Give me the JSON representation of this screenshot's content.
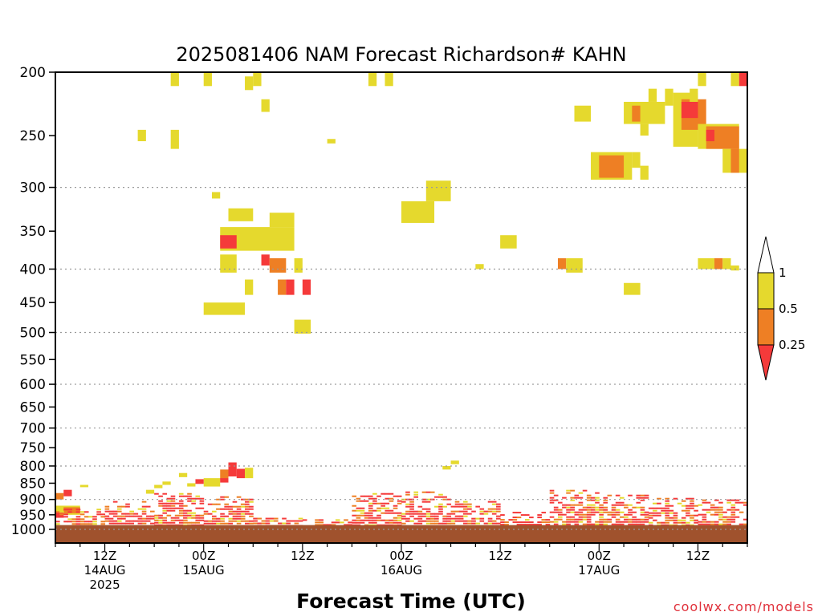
{
  "chart_data": {
    "type": "heatmap",
    "title": "2025081406 NAM Forecast Richardson# KAHN",
    "xlabel": "Forecast Time (UTC)",
    "credit": "coolwx.com/models",
    "x_unit": "hours after 2025-08-14 06Z",
    "xlim": [
      0,
      84
    ],
    "y_axis": {
      "scale": "log",
      "reversed": true,
      "range": [
        1000,
        200
      ]
    },
    "y_ticks": [
      200,
      250,
      300,
      350,
      400,
      450,
      500,
      550,
      600,
      650,
      700,
      750,
      800,
      850,
      900,
      950,
      1000
    ],
    "y_tick_labels": [
      "200",
      "250",
      "300",
      "350",
      "400",
      "450",
      "500",
      "550",
      "600",
      "650",
      "700",
      "750",
      "800",
      "850",
      "900",
      "950",
      "1000"
    ],
    "y_gridlines": [
      300,
      400,
      500,
      600,
      700,
      800,
      900,
      1000
    ],
    "x_ticks": [
      {
        "x": 6,
        "line1": "12Z",
        "line2": "14AUG",
        "line3": "2025"
      },
      {
        "x": 18,
        "line1": "00Z",
        "line2": "15AUG",
        "line3": ""
      },
      {
        "x": 30,
        "line1": "12Z",
        "line2": "",
        "line3": ""
      },
      {
        "x": 42,
        "line1": "00Z",
        "line2": "16AUG",
        "line3": ""
      },
      {
        "x": 54,
        "line1": "12Z",
        "line2": "",
        "line3": ""
      },
      {
        "x": 66,
        "line1": "00Z",
        "line2": "17AUG",
        "line3": ""
      },
      {
        "x": 78,
        "line1": "12Z",
        "line2": "",
        "line3": ""
      }
    ],
    "colorbar": {
      "labels": [
        "1",
        "0.5",
        "0.25"
      ],
      "bins": [
        {
          "range": "> 1",
          "color": "#ffffff"
        },
        {
          "range": "0.5 - 1",
          "color": "#e5d92d"
        },
        {
          "range": "0.25 - 0.5",
          "color": "#ee7f24"
        },
        {
          "range": "< 0.25",
          "color": "#f53a3a"
        }
      ]
    },
    "ground": {
      "color": "#a0522d",
      "from_p": 985
    },
    "cells": [
      {
        "x0": 14,
        "x1": 15,
        "p0": 200,
        "p1": 210,
        "c": "y"
      },
      {
        "x0": 18,
        "x1": 19,
        "p0": 200,
        "p1": 210,
        "c": "y"
      },
      {
        "x0": 23,
        "x1": 24,
        "p0": 203,
        "p1": 213,
        "c": "y"
      },
      {
        "x0": 24,
        "x1": 25,
        "p0": 200,
        "p1": 210,
        "c": "y"
      },
      {
        "x0": 25,
        "x1": 26,
        "p0": 220,
        "p1": 230,
        "c": "y"
      },
      {
        "x0": 10,
        "x1": 11,
        "p0": 245,
        "p1": 255,
        "c": "y"
      },
      {
        "x0": 14,
        "x1": 15,
        "p0": 245,
        "p1": 262,
        "c": "y"
      },
      {
        "x0": 33,
        "x1": 34,
        "p0": 253,
        "p1": 257,
        "c": "y"
      },
      {
        "x0": 38,
        "x1": 39,
        "p0": 200,
        "p1": 210,
        "c": "y"
      },
      {
        "x0": 40,
        "x1": 41,
        "p0": 200,
        "p1": 210,
        "c": "y"
      },
      {
        "x0": 19,
        "x1": 20,
        "p0": 305,
        "p1": 312,
        "c": "y"
      },
      {
        "x0": 21,
        "x1": 24,
        "p0": 323,
        "p1": 338,
        "c": "y"
      },
      {
        "x0": 26,
        "x1": 29,
        "p0": 328,
        "p1": 345,
        "c": "y"
      },
      {
        "x0": 20,
        "x1": 29,
        "p0": 345,
        "p1": 375,
        "c": "y"
      },
      {
        "x0": 20,
        "x1": 22,
        "p0": 355,
        "p1": 372,
        "c": "r"
      },
      {
        "x0": 20,
        "x1": 22,
        "p0": 380,
        "p1": 405,
        "c": "y"
      },
      {
        "x0": 25,
        "x1": 26,
        "p0": 380,
        "p1": 395,
        "c": "r"
      },
      {
        "x0": 26,
        "x1": 28,
        "p0": 385,
        "p1": 405,
        "c": "o"
      },
      {
        "x0": 29,
        "x1": 30,
        "p0": 385,
        "p1": 405,
        "c": "y"
      },
      {
        "x0": 23,
        "x1": 24,
        "p0": 415,
        "p1": 438,
        "c": "y"
      },
      {
        "x0": 27,
        "x1": 28,
        "p0": 415,
        "p1": 438,
        "c": "o"
      },
      {
        "x0": 28,
        "x1": 29,
        "p0": 415,
        "p1": 438,
        "c": "r"
      },
      {
        "x0": 30,
        "x1": 31,
        "p0": 415,
        "p1": 438,
        "c": "r"
      },
      {
        "x0": 18,
        "x1": 23,
        "p0": 450,
        "p1": 470,
        "c": "y"
      },
      {
        "x0": 29,
        "x1": 31,
        "p0": 478,
        "p1": 502,
        "c": "y"
      },
      {
        "x0": 42,
        "x1": 46,
        "p0": 315,
        "p1": 340,
        "c": "y"
      },
      {
        "x0": 45,
        "x1": 48,
        "p0": 293,
        "p1": 315,
        "c": "y"
      },
      {
        "x0": 54,
        "x1": 56,
        "p0": 355,
        "p1": 372,
        "c": "y"
      },
      {
        "x0": 51,
        "x1": 52,
        "p0": 393,
        "p1": 400,
        "c": "y"
      },
      {
        "x0": 63,
        "x1": 65,
        "p0": 225,
        "p1": 238,
        "c": "y"
      },
      {
        "x0": 65,
        "x1": 70,
        "p0": 265,
        "p1": 292,
        "c": "y"
      },
      {
        "x0": 66,
        "x1": 69,
        "p0": 268,
        "p1": 290,
        "c": "o"
      },
      {
        "x0": 70,
        "x1": 71,
        "p0": 265,
        "p1": 280,
        "c": "y"
      },
      {
        "x0": 71,
        "x1": 72,
        "p0": 278,
        "p1": 292,
        "c": "y"
      },
      {
        "x0": 69,
        "x1": 74,
        "p0": 222,
        "p1": 240,
        "c": "y"
      },
      {
        "x0": 70,
        "x1": 71,
        "p0": 225,
        "p1": 238,
        "c": "o"
      },
      {
        "x0": 71,
        "x1": 72,
        "p0": 240,
        "p1": 250,
        "c": "y"
      },
      {
        "x0": 72,
        "x1": 73,
        "p0": 212,
        "p1": 222,
        "c": "y"
      },
      {
        "x0": 74,
        "x1": 75,
        "p0": 212,
        "p1": 225,
        "c": "y"
      },
      {
        "x0": 75,
        "x1": 78,
        "p0": 215,
        "p1": 260,
        "c": "y"
      },
      {
        "x0": 76,
        "x1": 79,
        "p0": 220,
        "p1": 245,
        "c": "o"
      },
      {
        "x0": 76,
        "x1": 78,
        "p0": 222,
        "p1": 235,
        "c": "r"
      },
      {
        "x0": 77,
        "x1": 78,
        "p0": 212,
        "p1": 222,
        "c": "y"
      },
      {
        "x0": 78,
        "x1": 79,
        "p0": 200,
        "p1": 210,
        "c": "y"
      },
      {
        "x0": 78,
        "x1": 83,
        "p0": 240,
        "p1": 262,
        "c": "y"
      },
      {
        "x0": 79,
        "x1": 83,
        "p0": 242,
        "p1": 262,
        "c": "o"
      },
      {
        "x0": 79,
        "x1": 80,
        "p0": 245,
        "p1": 255,
        "c": "r"
      },
      {
        "x0": 81,
        "x1": 84,
        "p0": 262,
        "p1": 285,
        "c": "y"
      },
      {
        "x0": 82,
        "x1": 83,
        "p0": 262,
        "p1": 285,
        "c": "o"
      },
      {
        "x0": 82,
        "x1": 83,
        "p0": 200,
        "p1": 210,
        "c": "y"
      },
      {
        "x0": 83,
        "x1": 84,
        "p0": 200,
        "p1": 210,
        "c": "r"
      },
      {
        "x0": 61,
        "x1": 62,
        "p0": 385,
        "p1": 400,
        "c": "o"
      },
      {
        "x0": 62,
        "x1": 64,
        "p0": 385,
        "p1": 405,
        "c": "y"
      },
      {
        "x0": 69,
        "x1": 71,
        "p0": 420,
        "p1": 438,
        "c": "y"
      },
      {
        "x0": 78,
        "x1": 80,
        "p0": 385,
        "p1": 400,
        "c": "y"
      },
      {
        "x0": 80,
        "x1": 81,
        "p0": 385,
        "p1": 400,
        "c": "o"
      },
      {
        "x0": 81,
        "x1": 82,
        "p0": 385,
        "p1": 400,
        "c": "y"
      },
      {
        "x0": 82,
        "x1": 83,
        "p0": 395,
        "p1": 402,
        "c": "y"
      },
      {
        "x0": 18,
        "x1": 20,
        "p0": 835,
        "p1": 860,
        "c": "y"
      },
      {
        "x0": 20,
        "x1": 21,
        "p0": 810,
        "p1": 840,
        "c": "o"
      },
      {
        "x0": 21,
        "x1": 22,
        "p0": 790,
        "p1": 830,
        "c": "r"
      },
      {
        "x0": 22,
        "x1": 23,
        "p0": 808,
        "p1": 835,
        "c": "r"
      },
      {
        "x0": 23,
        "x1": 24,
        "p0": 805,
        "p1": 835,
        "c": "y"
      },
      {
        "x0": 20,
        "x1": 21,
        "p0": 835,
        "p1": 848,
        "c": "r"
      },
      {
        "x0": 15,
        "x1": 16,
        "p0": 820,
        "p1": 832,
        "c": "y"
      },
      {
        "x0": 13,
        "x1": 14,
        "p0": 845,
        "p1": 855,
        "c": "y"
      },
      {
        "x0": 12,
        "x1": 13,
        "p0": 855,
        "p1": 865,
        "c": "y"
      },
      {
        "x0": 11,
        "x1": 12,
        "p0": 870,
        "p1": 882,
        "c": "y"
      },
      {
        "x0": 17,
        "x1": 18,
        "p0": 838,
        "p1": 852,
        "c": "r"
      },
      {
        "x0": 16,
        "x1": 17,
        "p0": 850,
        "p1": 860,
        "c": "y"
      },
      {
        "x0": 47,
        "x1": 48,
        "p0": 800,
        "p1": 810,
        "c": "y"
      },
      {
        "x0": 48,
        "x1": 49,
        "p0": 785,
        "p1": 795,
        "c": "y"
      },
      {
        "x0": 0,
        "x1": 1,
        "p0": 880,
        "p1": 900,
        "c": "o"
      },
      {
        "x0": 1,
        "x1": 2,
        "p0": 870,
        "p1": 890,
        "c": "r"
      },
      {
        "x0": 3,
        "x1": 4,
        "p0": 855,
        "p1": 862,
        "c": "y"
      },
      {
        "x0": 0,
        "x1": 3,
        "p0": 920,
        "p1": 950,
        "c": "y"
      },
      {
        "x0": 1,
        "x1": 3,
        "p0": 925,
        "p1": 945,
        "c": "o"
      },
      {
        "x0": 0,
        "x1": 1,
        "p0": 940,
        "p1": 960,
        "c": "r"
      }
    ],
    "boundary_layer": {
      "note": "Richardson number values near the surface (roughly 860 to 985 hPa), rendered as thin red/orange/yellow streaks",
      "segments": [
        {
          "x0": 0,
          "x1": 6,
          "top": 930
        },
        {
          "x0": 6,
          "x1": 12,
          "top": 905
        },
        {
          "x0": 12,
          "x1": 18,
          "top": 880
        },
        {
          "x0": 18,
          "x1": 24,
          "top": 890
        },
        {
          "x0": 24,
          "x1": 30,
          "top": 960
        },
        {
          "x0": 30,
          "x1": 36,
          "top": 965
        },
        {
          "x0": 36,
          "x1": 42,
          "top": 880
        },
        {
          "x0": 42,
          "x1": 48,
          "top": 875
        },
        {
          "x0": 48,
          "x1": 54,
          "top": 905
        },
        {
          "x0": 54,
          "x1": 60,
          "top": 940
        },
        {
          "x0": 60,
          "x1": 66,
          "top": 870
        },
        {
          "x0": 66,
          "x1": 72,
          "top": 885
        },
        {
          "x0": 72,
          "x1": 78,
          "top": 895
        },
        {
          "x0": 78,
          "x1": 84,
          "top": 900
        }
      ]
    }
  }
}
